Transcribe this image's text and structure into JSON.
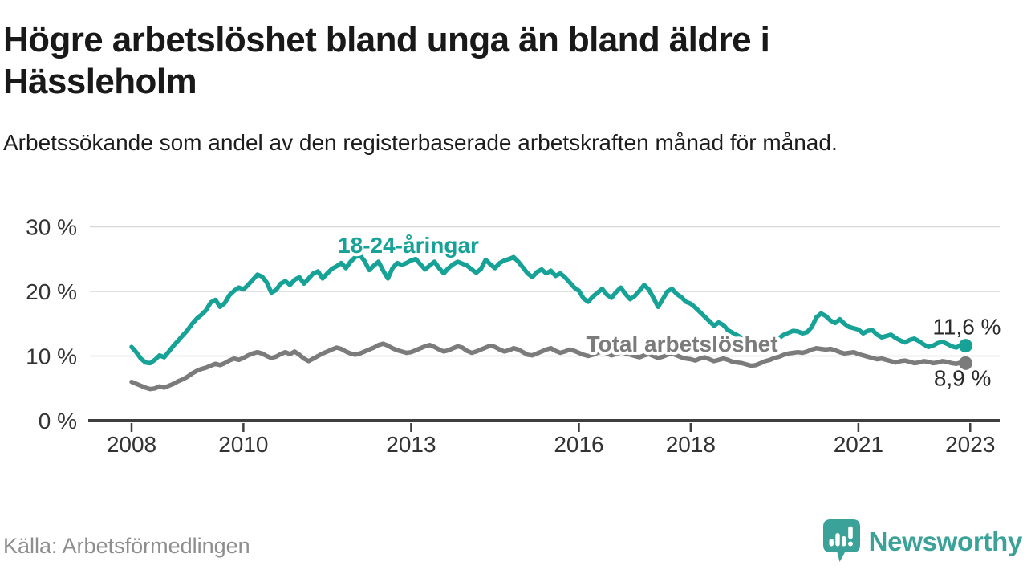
{
  "header": {
    "title": "Högre arbetslöshet bland unga än bland äldre i Hässleholm",
    "subtitle": "Arbetssökande som andel av den registerbaserade arbetskraften månad för månad."
  },
  "footer": {
    "source": "Källa: Arbetsförmedlingen",
    "brand": "Newsworthy",
    "brand_icon": "speech-bubble-with-bar-chart-and-exclamation",
    "brand_color": "#3aa298"
  },
  "colors": {
    "youth_line": "#17a297",
    "total_line": "#7b7b7b",
    "value_label": "#2b2b2b",
    "axis_text": "#333333",
    "axis_line": "#3f3f3f",
    "gridline": "#d8d8d8",
    "background": "#ffffff"
  },
  "chart_data": {
    "type": "line",
    "title": "Högre arbetslöshet bland unga än bland äldre i Hässleholm",
    "subtitle": "Arbetssökande som andel av den registerbaserade arbetskraften månad för månad.",
    "x_unit": "month",
    "x_start": "2008-01",
    "x_end": "2022-12",
    "ylim": [
      0,
      30
    ],
    "grid": "horizontal",
    "legend_position": "inline-labels",
    "y_ticks": [
      {
        "value": 0,
        "label": "0 %"
      },
      {
        "value": 10,
        "label": "10 %"
      },
      {
        "value": 20,
        "label": "20 %"
      },
      {
        "value": 30,
        "label": "30 %"
      }
    ],
    "x_ticks": [
      {
        "year": 2008,
        "label": "2008"
      },
      {
        "year": 2010,
        "label": "2010"
      },
      {
        "year": 2013,
        "label": "2013"
      },
      {
        "year": 2016,
        "label": "2016"
      },
      {
        "year": 2018,
        "label": "2018"
      },
      {
        "year": 2021,
        "label": "2021"
      },
      {
        "year": 2023,
        "label": "2023"
      }
    ],
    "series": [
      {
        "name": "18-24-åringar",
        "color": "#17a297",
        "end_label": "11,6 %",
        "end_value": 11.6,
        "values": [
          11.4,
          10.6,
          9.6,
          9.0,
          8.9,
          9.4,
          10.1,
          9.8,
          10.7,
          11.6,
          12.4,
          13.2,
          14.0,
          15.0,
          15.8,
          16.4,
          17.1,
          18.3,
          18.7,
          17.6,
          18.2,
          19.4,
          20.1,
          20.6,
          20.3,
          21.0,
          21.8,
          22.6,
          22.3,
          21.4,
          19.8,
          20.2,
          21.2,
          21.6,
          21.0,
          21.8,
          22.2,
          21.2,
          22.0,
          22.8,
          23.1,
          22.0,
          22.8,
          23.5,
          23.9,
          24.4,
          23.6,
          24.6,
          25.3,
          25.6,
          24.7,
          23.3,
          24.0,
          24.6,
          23.2,
          22.0,
          23.6,
          24.4,
          24.1,
          24.4,
          24.8,
          25.0,
          24.2,
          23.4,
          24.0,
          24.6,
          23.6,
          22.8,
          23.6,
          24.2,
          24.6,
          24.3,
          24.0,
          23.4,
          22.9,
          23.5,
          24.9,
          24.2,
          23.6,
          24.4,
          24.8,
          25.0,
          25.3,
          24.6,
          23.7,
          22.8,
          22.2,
          23.0,
          23.4,
          22.8,
          23.2,
          22.4,
          22.8,
          22.2,
          21.4,
          20.6,
          20.1,
          18.9,
          18.4,
          19.2,
          19.8,
          20.4,
          19.5,
          19.0,
          19.9,
          20.6,
          19.6,
          18.8,
          19.3,
          20.1,
          21.0,
          20.3,
          19.0,
          17.6,
          18.8,
          20.0,
          20.4,
          19.6,
          19.1,
          18.4,
          18.1,
          17.5,
          16.8,
          16.1,
          15.4,
          14.7,
          15.2,
          14.8,
          14.0,
          13.6,
          13.2,
          12.8,
          12.4,
          12.1,
          12.5,
          11.9,
          11.5,
          11.3,
          12.2,
          12.8,
          13.3,
          13.6,
          13.9,
          13.8,
          13.5,
          13.7,
          14.5,
          16.0,
          16.6,
          16.2,
          15.5,
          15.1,
          15.7,
          15.0,
          14.5,
          14.3,
          14.1,
          13.5,
          13.9,
          14.0,
          13.3,
          12.9,
          13.1,
          13.3,
          12.8,
          12.4,
          12.1,
          12.5,
          12.7,
          12.3,
          11.8,
          11.4,
          11.6,
          12.0,
          12.2,
          11.9,
          11.5,
          11.3,
          11.7,
          11.6
        ]
      },
      {
        "name": "Total arbetslöshet",
        "color": "#7b7b7b",
        "end_label": "8,9 %",
        "end_value": 8.9,
        "values": [
          6.0,
          5.7,
          5.4,
          5.1,
          4.9,
          5.0,
          5.3,
          5.1,
          5.4,
          5.7,
          6.1,
          6.4,
          6.8,
          7.3,
          7.7,
          8.0,
          8.2,
          8.5,
          8.8,
          8.6,
          8.9,
          9.3,
          9.6,
          9.4,
          9.7,
          10.1,
          10.4,
          10.6,
          10.4,
          10.0,
          9.7,
          9.9,
          10.3,
          10.6,
          10.3,
          10.7,
          10.2,
          9.6,
          9.2,
          9.6,
          10.0,
          10.4,
          10.7,
          11.0,
          11.3,
          11.1,
          10.7,
          10.4,
          10.2,
          10.4,
          10.7,
          11.0,
          11.3,
          11.7,
          11.9,
          11.6,
          11.2,
          10.9,
          10.7,
          10.5,
          10.6,
          10.9,
          11.2,
          11.5,
          11.7,
          11.4,
          11.0,
          10.7,
          10.9,
          11.2,
          11.5,
          11.3,
          10.8,
          10.5,
          10.7,
          11.0,
          11.3,
          11.6,
          11.4,
          11.0,
          10.7,
          10.9,
          11.2,
          11.0,
          10.6,
          10.2,
          10.1,
          10.4,
          10.7,
          11.0,
          11.2,
          10.8,
          10.5,
          10.7,
          11.0,
          10.8,
          10.5,
          10.2,
          10.0,
          10.2,
          10.5,
          10.7,
          10.4,
          10.1,
          10.3,
          10.6,
          10.4,
          10.2,
          10.0,
          9.8,
          10.1,
          10.3,
          10.0,
          9.7,
          9.9,
          10.2,
          10.4,
          10.1,
          9.8,
          9.6,
          9.5,
          9.3,
          9.6,
          9.8,
          9.5,
          9.2,
          9.4,
          9.6,
          9.4,
          9.1,
          9.0,
          8.9,
          8.7,
          8.5,
          8.6,
          8.9,
          9.2,
          9.4,
          9.7,
          9.9,
          10.2,
          10.4,
          10.5,
          10.6,
          10.5,
          10.7,
          11.0,
          11.2,
          11.1,
          11.0,
          11.1,
          10.9,
          10.6,
          10.4,
          10.5,
          10.6,
          10.3,
          10.1,
          9.9,
          9.7,
          9.5,
          9.6,
          9.4,
          9.2,
          9.0,
          9.2,
          9.3,
          9.1,
          8.9,
          9.0,
          9.2,
          9.1,
          8.9,
          9.0,
          9.2,
          9.1,
          8.9,
          8.8,
          9.0,
          8.9
        ]
      }
    ]
  }
}
